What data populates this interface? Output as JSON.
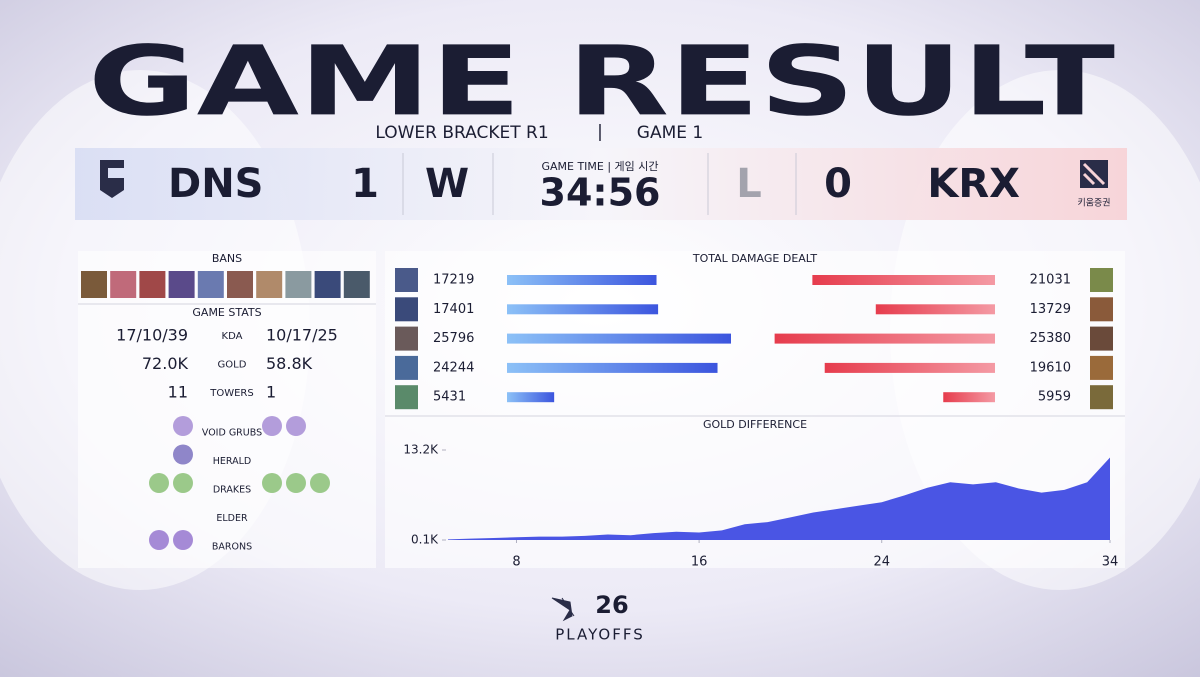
{
  "header": {
    "title": "GAME RESULT",
    "stage": "LOWER BRACKET R1",
    "game": "GAME 1"
  },
  "scoreboard": {
    "left": {
      "team": "DNS",
      "score": 1,
      "result": "W"
    },
    "right": {
      "team": "KRX",
      "score": 0,
      "result": "L",
      "logo_text": "키움증권"
    },
    "game_time_label": "GAME TIME | 게임 시간",
    "game_time": "34:56"
  },
  "bans": {
    "title": "BANS"
  },
  "game_stats": {
    "title": "GAME STATS",
    "rows": [
      {
        "left": "17/10/39",
        "label": "KDA",
        "right": "10/17/25"
      },
      {
        "left": "72.0K",
        "label": "GOLD",
        "right": "58.8K"
      },
      {
        "left": 11,
        "label": "TOWERS",
        "right": 1
      }
    ],
    "objectives": [
      {
        "label": "VOID GRUBS",
        "left": 1,
        "right": 2
      },
      {
        "label": "HERALD",
        "left": 1,
        "right": 0
      },
      {
        "label": "DRAKES",
        "left": 2,
        "right": 3
      },
      {
        "label": "ELDER",
        "left": 0,
        "right": 0
      },
      {
        "label": "BARONS",
        "left": 2,
        "right": 0
      }
    ]
  },
  "damage": {
    "title": "TOTAL DAMAGE DEALT",
    "left": [
      17219,
      17401,
      25796,
      24244,
      5431
    ],
    "right": [
      21031,
      13729,
      25380,
      19610,
      5959
    ]
  },
  "gold_difference": {
    "title": "GOLD DIFFERENCE",
    "x": [
      5,
      6,
      7,
      8,
      9,
      10,
      11,
      12,
      13,
      14,
      15,
      16,
      17,
      18,
      19,
      20,
      21,
      22,
      23,
      24,
      25,
      26,
      27,
      28,
      29,
      30,
      31,
      32,
      33,
      34
    ],
    "values": [
      200,
      300,
      400,
      500,
      600,
      600,
      700,
      900,
      800,
      1100,
      1300,
      1200,
      1500,
      2400,
      2700,
      3400,
      4100,
      4600,
      5100,
      5600,
      6600,
      7700,
      8500,
      8200,
      8500,
      7600,
      7000,
      7400,
      8500,
      12100
    ],
    "xlim": [
      5,
      34
    ],
    "xticks": [
      8,
      16,
      24,
      34
    ],
    "ylim": [
      100,
      13200
    ],
    "yticks": [
      {
        "value": 13200,
        "label": "13.2K"
      },
      {
        "value": 100,
        "label": "0.1K"
      }
    ]
  },
  "footer": {
    "number": "26",
    "label": "PLAYOFFS"
  }
}
